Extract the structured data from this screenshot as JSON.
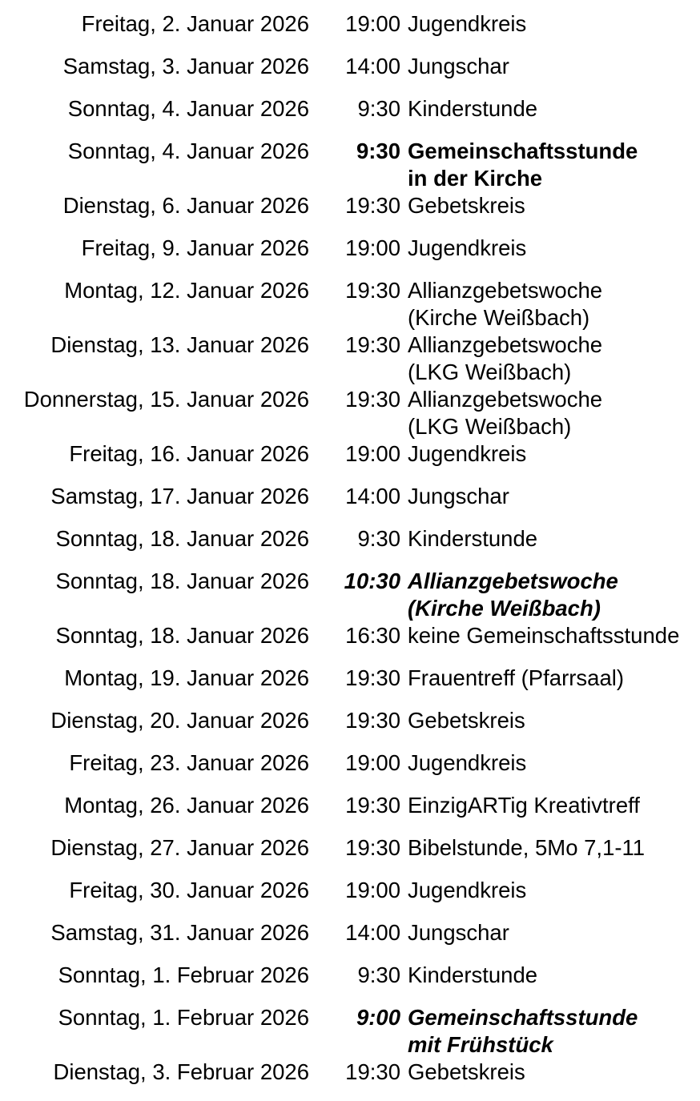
{
  "events": [
    {
      "date": "Freitag, 2. Januar 2026",
      "time": "19:00",
      "lines": [
        "Jugendkreis"
      ],
      "style": "normal"
    },
    {
      "date": "Samstag, 3. Januar 2026",
      "time": "14:00",
      "lines": [
        "Jungschar"
      ],
      "style": "normal"
    },
    {
      "date": "Sonntag, 4. Januar 2026",
      "time": "9:30",
      "lines": [
        "Kinderstunde"
      ],
      "style": "normal"
    },
    {
      "date": "Sonntag, 4. Januar 2026",
      "time": "9:30",
      "lines": [
        "Gemeinschaftsstunde",
        "in der Kirche"
      ],
      "style": "bold"
    },
    {
      "date": "Dienstag, 6. Januar 2026",
      "time": "19:30",
      "lines": [
        "Gebetskreis"
      ],
      "style": "normal"
    },
    {
      "date": "Freitag, 9. Januar 2026",
      "time": "19:00",
      "lines": [
        "Jugendkreis"
      ],
      "style": "normal"
    },
    {
      "date": "Montag, 12. Januar 2026",
      "time": "19:30",
      "lines": [
        "Allianzgebetswoche",
        "(Kirche Weißbach)"
      ],
      "style": "normal"
    },
    {
      "date": "Dienstag, 13. Januar 2026",
      "time": "19:30",
      "lines": [
        "Allianzgebetswoche",
        "(LKG Weißbach)"
      ],
      "style": "normal"
    },
    {
      "date": "Donnerstag, 15. Januar 2026",
      "time": "19:30",
      "lines": [
        "Allianzgebetswoche",
        "(LKG Weißbach)"
      ],
      "style": "normal"
    },
    {
      "date": "Freitag, 16. Januar 2026",
      "time": "19:00",
      "lines": [
        "Jugendkreis"
      ],
      "style": "normal"
    },
    {
      "date": "Samstag, 17. Januar 2026",
      "time": "14:00",
      "lines": [
        "Jungschar"
      ],
      "style": "normal"
    },
    {
      "date": "Sonntag, 18. Januar 2026",
      "time": "9:30",
      "lines": [
        "Kinderstunde"
      ],
      "style": "normal"
    },
    {
      "date": "Sonntag, 18. Januar 2026",
      "time": "10:30",
      "lines": [
        "Allianzgebetswoche",
        "(Kirche Weißbach)"
      ],
      "style": "bolditalic"
    },
    {
      "date": "Sonntag, 18. Januar 2026",
      "time": "16:30",
      "lines": [
        "keine Gemeinschaftsstunde"
      ],
      "style": "normal"
    },
    {
      "date": "Montag, 19. Januar 2026",
      "time": "19:30",
      "lines": [
        "Frauentreff (Pfarrsaal)"
      ],
      "style": "normal"
    },
    {
      "date": "Dienstag, 20. Januar 2026",
      "time": "19:30",
      "lines": [
        "Gebetskreis"
      ],
      "style": "normal"
    },
    {
      "date": "Freitag, 23. Januar 2026",
      "time": "19:00",
      "lines": [
        "Jugendkreis"
      ],
      "style": "normal"
    },
    {
      "date": "Montag, 26. Januar 2026",
      "time": "19:30",
      "lines": [
        "EinzigARTig Kreativtreff"
      ],
      "style": "normal"
    },
    {
      "date": "Dienstag, 27. Januar 2026",
      "time": "19:30",
      "lines": [
        "Bibelstunde, 5Mo 7,1-11"
      ],
      "style": "normal"
    },
    {
      "date": "Freitag, 30. Januar 2026",
      "time": "19:00",
      "lines": [
        "Jugendkreis"
      ],
      "style": "normal"
    },
    {
      "date": "Samstag, 31. Januar 2026",
      "time": "14:00",
      "lines": [
        "Jungschar"
      ],
      "style": "normal"
    },
    {
      "date": "Sonntag, 1. Februar 2026",
      "time": "9:30",
      "lines": [
        "Kinderstunde"
      ],
      "style": "normal"
    },
    {
      "date": "Sonntag, 1. Februar 2026",
      "time": "9:00",
      "lines": [
        "Gemeinschaftsstunde",
        "mit Frühstück"
      ],
      "style": "bolditalic"
    },
    {
      "date": "Dienstag, 3. Februar 2026",
      "time": "19:30",
      "lines": [
        "Gebetskreis"
      ],
      "style": "normal"
    }
  ]
}
